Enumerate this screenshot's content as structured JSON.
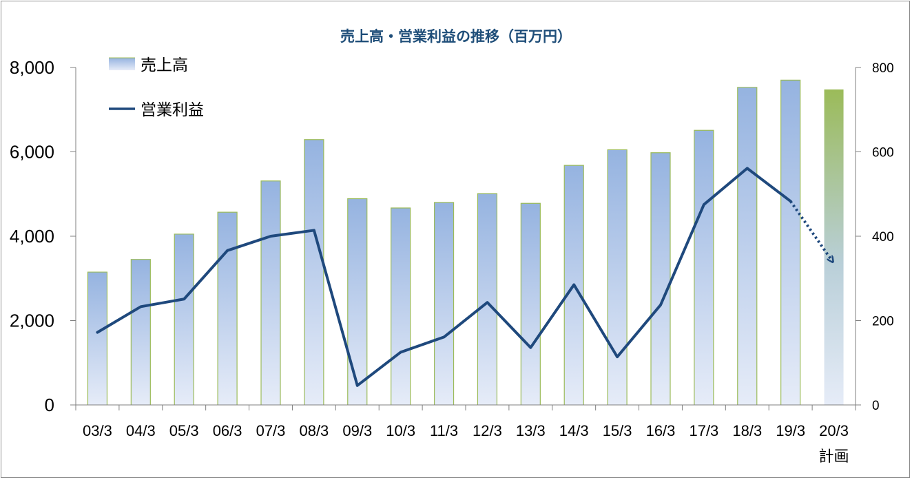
{
  "chart_data": {
    "type": "bar",
    "title": "売上高・営業利益の推移（百万円）",
    "categories": [
      "03/3",
      "04/3",
      "05/3",
      "06/3",
      "07/3",
      "08/3",
      "09/3",
      "10/3",
      "11/3",
      "12/3",
      "13/3",
      "14/3",
      "15/3",
      "16/3",
      "17/3",
      "18/3",
      "19/3",
      "20/3"
    ],
    "category_sublabels": [
      "",
      "",
      "",
      "",
      "",
      "",
      "",
      "",
      "",
      "",
      "",
      "",
      "",
      "",
      "",
      "",
      "",
      "計画"
    ],
    "series": [
      {
        "name": "売上高",
        "type": "bar",
        "axis": "left",
        "values": [
          3150,
          3450,
          4050,
          4570,
          5310,
          6290,
          4890,
          4670,
          4800,
          5010,
          4780,
          5680,
          6050,
          5980,
          6510,
          7530,
          7700,
          7480
        ]
      },
      {
        "name": "営業利益",
        "type": "line",
        "axis": "right",
        "values": [
          172,
          233,
          251,
          366,
          400,
          414,
          46,
          125,
          161,
          243,
          136,
          285,
          114,
          237,
          475,
          561,
          483,
          336
        ],
        "forecast_from_index": 16
      }
    ],
    "y_left": {
      "min": 0,
      "max": 8000,
      "ticks": [
        0,
        2000,
        4000,
        6000,
        8000
      ],
      "tick_labels": [
        "0",
        "2,000",
        "4,000",
        "6,000",
        "8,000"
      ]
    },
    "y_right": {
      "min": 0,
      "max": 800,
      "ticks": [
        0,
        200,
        400,
        600,
        800
      ],
      "tick_labels": [
        "0",
        "200",
        "400",
        "600",
        "800"
      ]
    },
    "legend": {
      "position": "top-left"
    },
    "grid": false,
    "colors": {
      "title": "#1f4e79",
      "line": "#1f497d",
      "bar_top": "#95b3e0",
      "bar_bottom": "#e6ecf8",
      "bar_border": "#9bbb59",
      "plan_top": "#9bbb59",
      "axis": "#7f7f7f"
    }
  }
}
